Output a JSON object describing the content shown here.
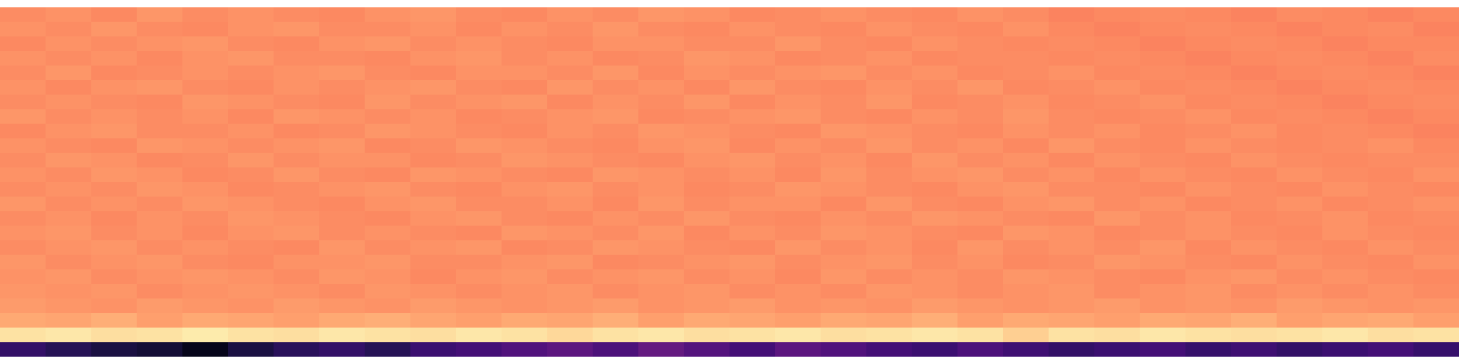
{
  "chart_data": {
    "type": "heatmap",
    "tick_labels": false,
    "color_scale": "magma",
    "color_range": [
      0,
      1
    ],
    "cells": [
      [
        0.76,
        0.77,
        0.75,
        0.78,
        0.76,
        0.77,
        0.76,
        0.75,
        0.77,
        0.78,
        0.76,
        0.75,
        0.77,
        0.76,
        0.78,
        0.77,
        0.75,
        0.76,
        0.77,
        0.76,
        0.75,
        0.77,
        0.76,
        0.74,
        0.75,
        0.76,
        0.75,
        0.74,
        0.76,
        0.75,
        0.74,
        0.75
      ],
      [
        0.77,
        0.76,
        0.78,
        0.76,
        0.75,
        0.77,
        0.78,
        0.76,
        0.76,
        0.77,
        0.75,
        0.77,
        0.76,
        0.78,
        0.76,
        0.75,
        0.77,
        0.76,
        0.75,
        0.77,
        0.76,
        0.75,
        0.77,
        0.75,
        0.74,
        0.75,
        0.76,
        0.75,
        0.74,
        0.75,
        0.76,
        0.74
      ],
      [
        0.75,
        0.77,
        0.76,
        0.77,
        0.78,
        0.76,
        0.75,
        0.77,
        0.78,
        0.76,
        0.77,
        0.76,
        0.75,
        0.77,
        0.77,
        0.76,
        0.76,
        0.78,
        0.76,
        0.75,
        0.77,
        0.76,
        0.75,
        0.76,
        0.75,
        0.74,
        0.75,
        0.76,
        0.75,
        0.74,
        0.75,
        0.75
      ],
      [
        0.77,
        0.76,
        0.77,
        0.75,
        0.77,
        0.78,
        0.76,
        0.76,
        0.75,
        0.77,
        0.78,
        0.76,
        0.77,
        0.75,
        0.76,
        0.78,
        0.77,
        0.75,
        0.76,
        0.77,
        0.75,
        0.76,
        0.76,
        0.75,
        0.76,
        0.75,
        0.74,
        0.75,
        0.76,
        0.75,
        0.74,
        0.76
      ],
      [
        0.76,
        0.78,
        0.75,
        0.76,
        0.77,
        0.76,
        0.77,
        0.78,
        0.76,
        0.75,
        0.77,
        0.77,
        0.76,
        0.78,
        0.75,
        0.77,
        0.76,
        0.77,
        0.78,
        0.76,
        0.77,
        0.75,
        0.76,
        0.77,
        0.75,
        0.76,
        0.75,
        0.74,
        0.75,
        0.76,
        0.75,
        0.74
      ],
      [
        0.77,
        0.75,
        0.77,
        0.78,
        0.76,
        0.75,
        0.77,
        0.76,
        0.77,
        0.78,
        0.76,
        0.75,
        0.78,
        0.76,
        0.77,
        0.75,
        0.78,
        0.76,
        0.75,
        0.77,
        0.76,
        0.78,
        0.75,
        0.76,
        0.77,
        0.75,
        0.76,
        0.75,
        0.74,
        0.75,
        0.76,
        0.75
      ],
      [
        0.76,
        0.77,
        0.76,
        0.75,
        0.78,
        0.77,
        0.76,
        0.75,
        0.78,
        0.76,
        0.77,
        0.78,
        0.75,
        0.77,
        0.76,
        0.78,
        0.75,
        0.77,
        0.76,
        0.78,
        0.75,
        0.76,
        0.77,
        0.75,
        0.76,
        0.77,
        0.75,
        0.76,
        0.75,
        0.74,
        0.75,
        0.76
      ],
      [
        0.78,
        0.76,
        0.77,
        0.76,
        0.77,
        0.75,
        0.78,
        0.77,
        0.76,
        0.77,
        0.75,
        0.76,
        0.77,
        0.78,
        0.75,
        0.76,
        0.77,
        0.78,
        0.76,
        0.75,
        0.77,
        0.76,
        0.78,
        0.76,
        0.75,
        0.76,
        0.77,
        0.75,
        0.76,
        0.75,
        0.74,
        0.75
      ],
      [
        0.75,
        0.77,
        0.78,
        0.76,
        0.76,
        0.77,
        0.75,
        0.76,
        0.78,
        0.77,
        0.76,
        0.75,
        0.77,
        0.76,
        0.78,
        0.77,
        0.76,
        0.75,
        0.78,
        0.77,
        0.76,
        0.75,
        0.77,
        0.76,
        0.77,
        0.75,
        0.76,
        0.77,
        0.75,
        0.76,
        0.75,
        0.74
      ],
      [
        0.77,
        0.76,
        0.75,
        0.78,
        0.77,
        0.76,
        0.77,
        0.78,
        0.75,
        0.76,
        0.78,
        0.77,
        0.76,
        0.75,
        0.77,
        0.78,
        0.75,
        0.77,
        0.76,
        0.78,
        0.76,
        0.77,
        0.75,
        0.78,
        0.76,
        0.75,
        0.77,
        0.76,
        0.75,
        0.76,
        0.77,
        0.75
      ],
      [
        0.76,
        0.78,
        0.77,
        0.75,
        0.76,
        0.78,
        0.76,
        0.77,
        0.77,
        0.75,
        0.76,
        0.78,
        0.77,
        0.76,
        0.75,
        0.77,
        0.78,
        0.76,
        0.77,
        0.75,
        0.78,
        0.76,
        0.77,
        0.75,
        0.77,
        0.76,
        0.75,
        0.77,
        0.76,
        0.75,
        0.76,
        0.76
      ],
      [
        0.77,
        0.76,
        0.78,
        0.77,
        0.75,
        0.76,
        0.78,
        0.76,
        0.75,
        0.78,
        0.77,
        0.76,
        0.75,
        0.78,
        0.77,
        0.76,
        0.77,
        0.75,
        0.78,
        0.76,
        0.77,
        0.78,
        0.76,
        0.77,
        0.75,
        0.77,
        0.76,
        0.75,
        0.77,
        0.76,
        0.75,
        0.77
      ],
      [
        0.76,
        0.77,
        0.76,
        0.78,
        0.77,
        0.75,
        0.76,
        0.77,
        0.78,
        0.76,
        0.75,
        0.77,
        0.78,
        0.76,
        0.77,
        0.75,
        0.76,
        0.78,
        0.77,
        0.76,
        0.75,
        0.77,
        0.78,
        0.76,
        0.76,
        0.75,
        0.77,
        0.76,
        0.75,
        0.77,
        0.76,
        0.75
      ],
      [
        0.78,
        0.76,
        0.77,
        0.76,
        0.78,
        0.77,
        0.76,
        0.75,
        0.77,
        0.78,
        0.76,
        0.76,
        0.77,
        0.75,
        0.78,
        0.76,
        0.77,
        0.77,
        0.75,
        0.78,
        0.76,
        0.75,
        0.77,
        0.78,
        0.76,
        0.77,
        0.75,
        0.76,
        0.77,
        0.75,
        0.76,
        0.77
      ],
      [
        0.76,
        0.77,
        0.75,
        0.77,
        0.76,
        0.78,
        0.77,
        0.76,
        0.75,
        0.77,
        0.78,
        0.76,
        0.75,
        0.77,
        0.76,
        0.78,
        0.76,
        0.75,
        0.77,
        0.76,
        0.78,
        0.77,
        0.76,
        0.75,
        0.78,
        0.76,
        0.77,
        0.75,
        0.76,
        0.77,
        0.75,
        0.76
      ],
      [
        0.77,
        0.78,
        0.76,
        0.77,
        0.75,
        0.77,
        0.78,
        0.76,
        0.77,
        0.76,
        0.75,
        0.78,
        0.77,
        0.76,
        0.78,
        0.75,
        0.77,
        0.76,
        0.78,
        0.77,
        0.76,
        0.75,
        0.78,
        0.77,
        0.75,
        0.76,
        0.77,
        0.76,
        0.75,
        0.77,
        0.76,
        0.75
      ],
      [
        0.76,
        0.77,
        0.78,
        0.76,
        0.77,
        0.76,
        0.75,
        0.78,
        0.76,
        0.77,
        0.78,
        0.75,
        0.76,
        0.78,
        0.77,
        0.76,
        0.75,
        0.78,
        0.76,
        0.77,
        0.75,
        0.78,
        0.76,
        0.77,
        0.76,
        0.78,
        0.75,
        0.77,
        0.76,
        0.75,
        0.77,
        0.76
      ],
      [
        0.78,
        0.76,
        0.77,
        0.78,
        0.76,
        0.75,
        0.77,
        0.77,
        0.78,
        0.76,
        0.76,
        0.77,
        0.78,
        0.75,
        0.76,
        0.77,
        0.78,
        0.76,
        0.77,
        0.78,
        0.76,
        0.77,
        0.75,
        0.76,
        0.78,
        0.77,
        0.76,
        0.75,
        0.77,
        0.76,
        0.75,
        0.77
      ],
      [
        0.77,
        0.78,
        0.76,
        0.77,
        0.78,
        0.77,
        0.76,
        0.78,
        0.77,
        0.75,
        0.77,
        0.78,
        0.76,
        0.77,
        0.78,
        0.76,
        0.77,
        0.75,
        0.78,
        0.76,
        0.77,
        0.76,
        0.78,
        0.77,
        0.76,
        0.75,
        0.77,
        0.78,
        0.76,
        0.77,
        0.76,
        0.75
      ],
      [
        0.78,
        0.77,
        0.78,
        0.76,
        0.77,
        0.78,
        0.77,
        0.76,
        0.78,
        0.77,
        0.76,
        0.77,
        0.78,
        0.76,
        0.77,
        0.78,
        0.76,
        0.77,
        0.76,
        0.78,
        0.77,
        0.76,
        0.77,
        0.78,
        0.76,
        0.77,
        0.78,
        0.76,
        0.77,
        0.76,
        0.77,
        0.76
      ],
      [
        0.79,
        0.78,
        0.77,
        0.79,
        0.78,
        0.77,
        0.79,
        0.78,
        0.77,
        0.79,
        0.78,
        0.77,
        0.78,
        0.79,
        0.77,
        0.78,
        0.79,
        0.77,
        0.78,
        0.77,
        0.79,
        0.78,
        0.77,
        0.78,
        0.79,
        0.77,
        0.78,
        0.77,
        0.79,
        0.78,
        0.77,
        0.78
      ],
      [
        0.82,
        0.81,
        0.83,
        0.8,
        0.82,
        0.81,
        0.8,
        0.82,
        0.83,
        0.81,
        0.8,
        0.82,
        0.81,
        0.83,
        0.8,
        0.82,
        0.81,
        0.8,
        0.82,
        0.81,
        0.83,
        0.8,
        0.82,
        0.81,
        0.8,
        0.82,
        0.81,
        0.83,
        0.8,
        0.81,
        0.82,
        0.8
      ],
      [
        0.94,
        0.95,
        0.93,
        0.94,
        0.96,
        0.94,
        0.93,
        0.95,
        0.94,
        0.93,
        0.95,
        0.94,
        0.92,
        0.94,
        0.95,
        0.93,
        0.94,
        0.95,
        0.93,
        0.94,
        0.95,
        0.94,
        0.9,
        0.94,
        0.93,
        0.95,
        0.94,
        0.93,
        0.94,
        0.95,
        0.93,
        0.94
      ],
      [
        0.18,
        0.15,
        0.12,
        0.1,
        0.05,
        0.12,
        0.16,
        0.18,
        0.15,
        0.2,
        0.22,
        0.25,
        0.28,
        0.24,
        0.3,
        0.26,
        0.22,
        0.28,
        0.25,
        0.22,
        0.2,
        0.24,
        0.21,
        0.18,
        0.2,
        0.22,
        0.19,
        0.21,
        0.18,
        0.2,
        0.22,
        0.19
      ]
    ]
  }
}
